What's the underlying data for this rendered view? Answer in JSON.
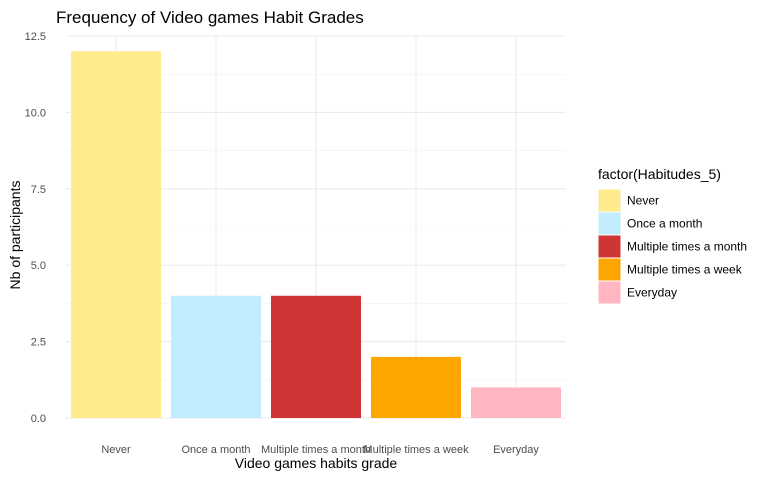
{
  "chart_data": {
    "type": "bar",
    "title": "Frequency of Video games Habit Grades",
    "xlabel": "Video games habits grade",
    "ylabel": "Nb of participants",
    "categories": [
      "Never",
      "Once a month",
      "Multiple times a month",
      "Multiple times a week",
      "Everyday"
    ],
    "values": [
      12,
      4,
      4,
      2,
      1
    ],
    "colors": [
      "#FFEA8C",
      "#C1EDFF",
      "#D03535",
      "#FFA500",
      "#FFB6C1"
    ],
    "ylim": [
      0,
      12.5
    ],
    "yticks": [
      0,
      2.5,
      5,
      7.5,
      10,
      12.5
    ],
    "ytick_labels": [
      "0.0",
      "2.5",
      "5.0",
      "7.5",
      "10.0",
      "12.5"
    ],
    "grid": true,
    "legend": {
      "title": "factor(Habitudes_5)",
      "placement": "right",
      "entries": [
        "Never",
        "Once a month",
        "Multiple times a month",
        "Multiple times a week",
        "Everyday"
      ]
    }
  }
}
